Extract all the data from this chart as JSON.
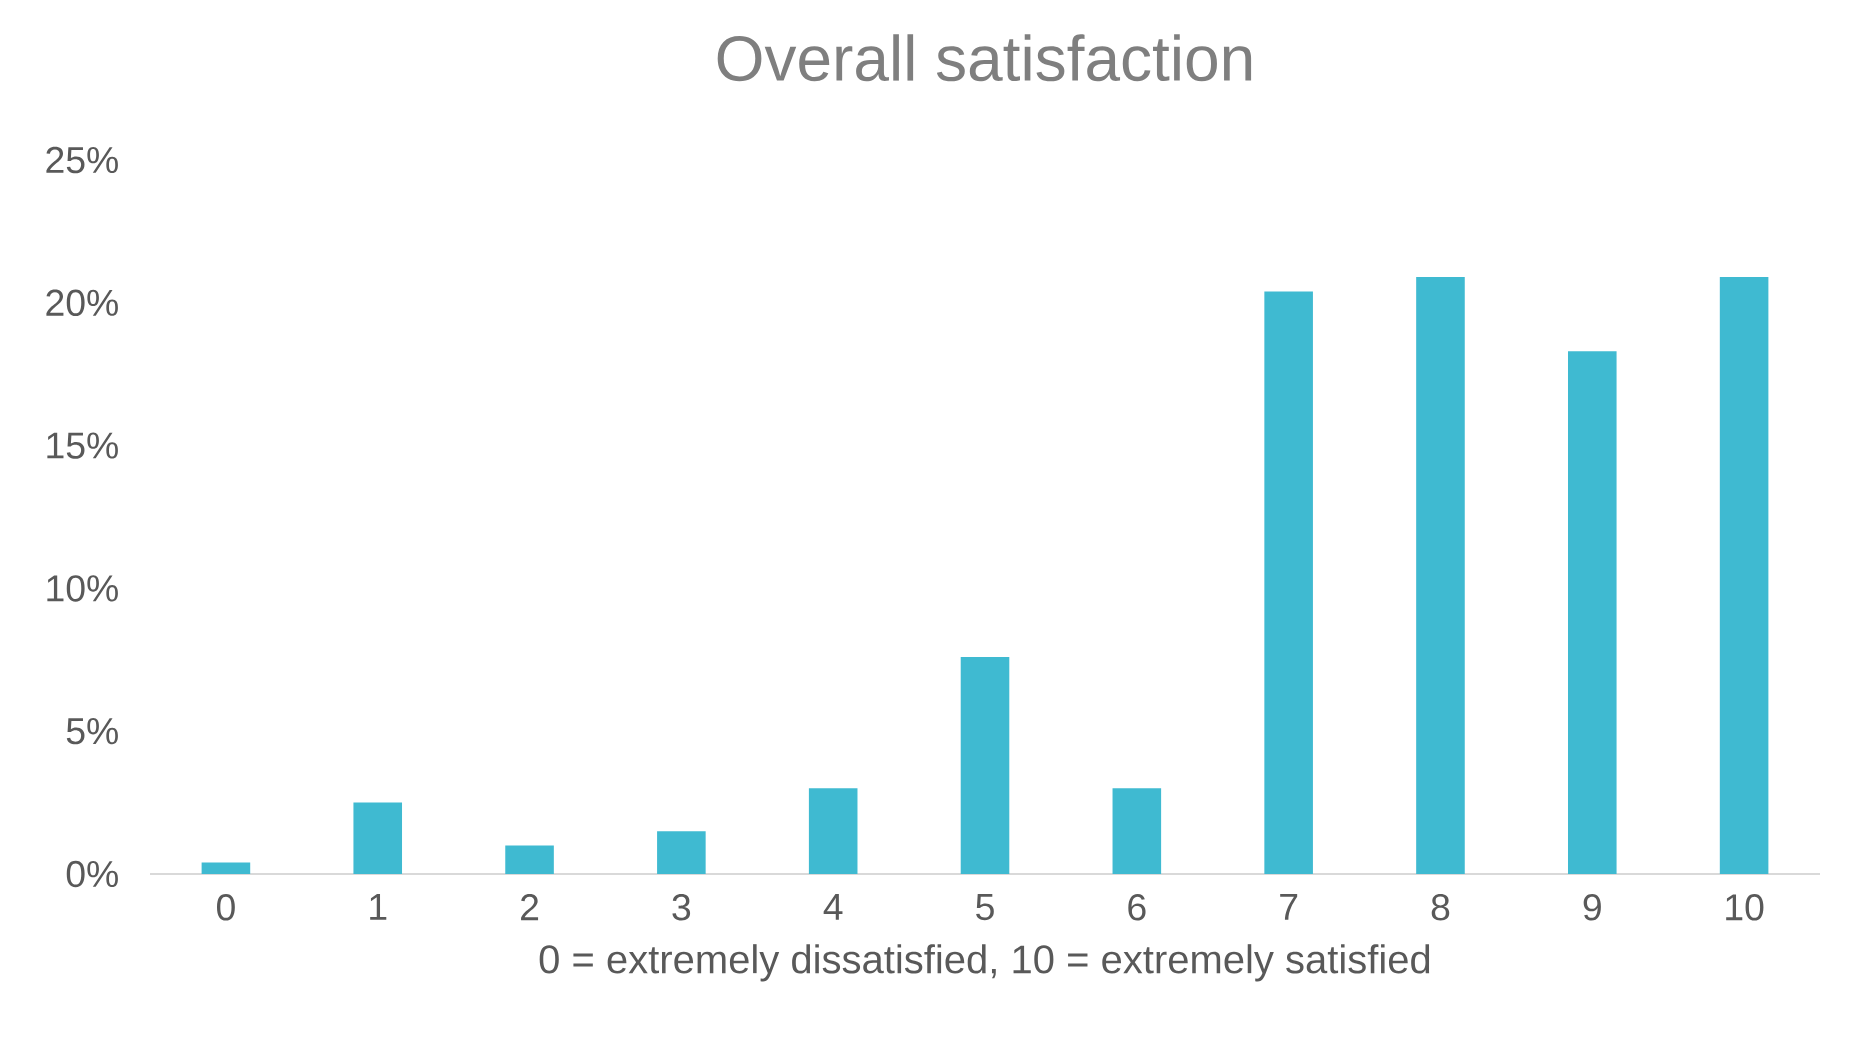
{
  "chart_data": {
    "type": "bar",
    "title": "Overall satisfaction",
    "xlabel": "0 = extremely dissatisfied, 10 = extremely satisfied",
    "categories": [
      "0",
      "1",
      "2",
      "3",
      "4",
      "5",
      "6",
      "7",
      "8",
      "9",
      "10"
    ],
    "values": [
      0.4,
      2.5,
      1.0,
      1.5,
      3.0,
      7.6,
      3.0,
      20.4,
      20.9,
      18.3,
      20.9
    ],
    "color": "#3fbad1",
    "ylim": [
      0,
      25
    ],
    "yticks": [
      {
        "value": 0,
        "label": "0%"
      },
      {
        "value": 5,
        "label": "5%"
      },
      {
        "value": 10,
        "label": "10%"
      },
      {
        "value": 15,
        "label": "15%"
      },
      {
        "value": 20,
        "label": "20%"
      },
      {
        "value": 25,
        "label": "25%"
      }
    ],
    "grid": false
  }
}
